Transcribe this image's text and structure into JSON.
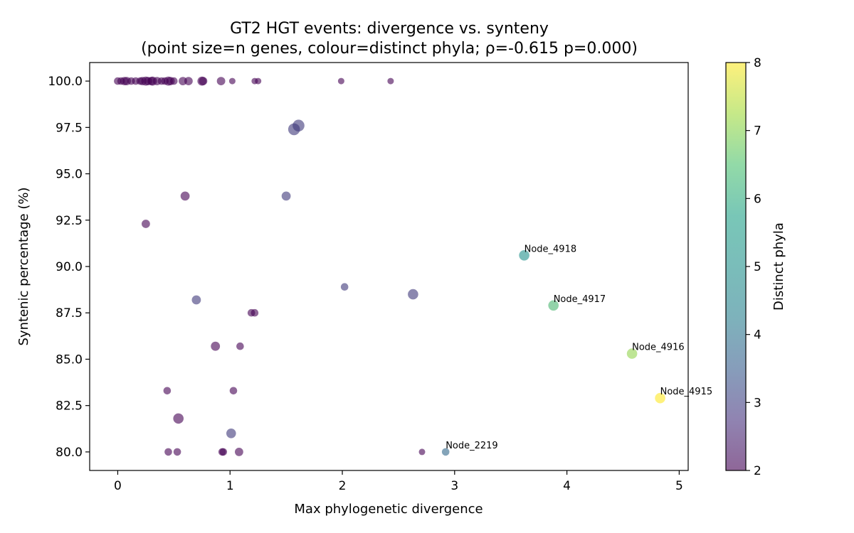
{
  "chart_data": {
    "type": "scatter",
    "title_line1": "GT2 HGT events: divergence vs. synteny",
    "title_line2": "(point size=n genes, colour=distinct phyla; ρ=-0.615 p=0.000)",
    "xlabel": "Max phylogenetic divergence",
    "ylabel": "Syntenic percentage (%)",
    "colorbar_label": "Distinct phyla",
    "xlim": [
      -0.25,
      5.08
    ],
    "ylim": [
      79.0,
      101.0
    ],
    "x_ticks": [
      0,
      1,
      2,
      3,
      4,
      5
    ],
    "x_tick_labels": [
      "0",
      "1",
      "2",
      "3",
      "4",
      "5"
    ],
    "y_ticks": [
      80.0,
      82.5,
      85.0,
      87.5,
      90.0,
      92.5,
      95.0,
      97.5,
      100.0
    ],
    "y_tick_labels": [
      "80.0",
      "82.5",
      "85.0",
      "87.5",
      "90.0",
      "92.5",
      "95.0",
      "97.5",
      "100.0"
    ],
    "color_range": [
      2,
      8
    ],
    "colorbar_ticks": [
      2,
      3,
      4,
      5,
      6,
      7,
      8
    ],
    "colorbar_tick_labels": [
      "2",
      "3",
      "4",
      "5",
      "6",
      "7",
      "8"
    ],
    "colormap": "viridis",
    "point_alpha": 0.6,
    "points": [
      {
        "x": 0.0,
        "y": 100.0,
        "phyla": 2,
        "size": 2
      },
      {
        "x": 0.03,
        "y": 100.0,
        "phyla": 2,
        "size": 2
      },
      {
        "x": 0.06,
        "y": 100.0,
        "phyla": 2,
        "size": 3
      },
      {
        "x": 0.08,
        "y": 100.0,
        "phyla": 2,
        "size": 3
      },
      {
        "x": 0.12,
        "y": 100.0,
        "phyla": 2,
        "size": 2
      },
      {
        "x": 0.16,
        "y": 100.0,
        "phyla": 2,
        "size": 2
      },
      {
        "x": 0.2,
        "y": 100.0,
        "phyla": 2,
        "size": 2
      },
      {
        "x": 0.22,
        "y": 100.0,
        "phyla": 2,
        "size": 3
      },
      {
        "x": 0.25,
        "y": 100.0,
        "phyla": 2,
        "size": 4
      },
      {
        "x": 0.27,
        "y": 100.0,
        "phyla": 2,
        "size": 3
      },
      {
        "x": 0.3,
        "y": 100.0,
        "phyla": 2,
        "size": 3
      },
      {
        "x": 0.31,
        "y": 100.0,
        "phyla": 2,
        "size": 4
      },
      {
        "x": 0.35,
        "y": 100.0,
        "phyla": 2,
        "size": 3
      },
      {
        "x": 0.39,
        "y": 100.0,
        "phyla": 2,
        "size": 2
      },
      {
        "x": 0.42,
        "y": 100.0,
        "phyla": 2,
        "size": 2
      },
      {
        "x": 0.45,
        "y": 100.0,
        "phyla": 2,
        "size": 4
      },
      {
        "x": 0.47,
        "y": 100.0,
        "phyla": 2,
        "size": 3
      },
      {
        "x": 0.5,
        "y": 100.0,
        "phyla": 2,
        "size": 2
      },
      {
        "x": 0.58,
        "y": 100.0,
        "phyla": 2,
        "size": 3
      },
      {
        "x": 0.63,
        "y": 100.0,
        "phyla": 2,
        "size": 3
      },
      {
        "x": 0.75,
        "y": 100.0,
        "phyla": 2,
        "size": 4
      },
      {
        "x": 0.76,
        "y": 100.0,
        "phyla": 2,
        "size": 3
      },
      {
        "x": 0.92,
        "y": 100.0,
        "phyla": 2,
        "size": 3
      },
      {
        "x": 1.02,
        "y": 100.0,
        "phyla": 2,
        "size": 1
      },
      {
        "x": 1.22,
        "y": 100.0,
        "phyla": 2,
        "size": 1
      },
      {
        "x": 1.25,
        "y": 100.0,
        "phyla": 2,
        "size": 1
      },
      {
        "x": 1.99,
        "y": 100.0,
        "phyla": 2,
        "size": 1
      },
      {
        "x": 2.43,
        "y": 100.0,
        "phyla": 2,
        "size": 1
      },
      {
        "x": 1.57,
        "y": 97.4,
        "phyla": 3,
        "size": 9
      },
      {
        "x": 1.61,
        "y": 97.6,
        "phyla": 3,
        "size": 9
      },
      {
        "x": 0.6,
        "y": 93.8,
        "phyla": 2,
        "size": 4
      },
      {
        "x": 1.5,
        "y": 93.8,
        "phyla": 3,
        "size": 4
      },
      {
        "x": 0.25,
        "y": 92.3,
        "phyla": 2,
        "size": 3
      },
      {
        "x": 3.62,
        "y": 90.6,
        "phyla": 5,
        "size": 6,
        "label": "Node_4918"
      },
      {
        "x": 2.02,
        "y": 88.9,
        "phyla": 3,
        "size": 2
      },
      {
        "x": 2.63,
        "y": 88.5,
        "phyla": 3,
        "size": 6
      },
      {
        "x": 0.7,
        "y": 88.2,
        "phyla": 3,
        "size": 4
      },
      {
        "x": 1.19,
        "y": 87.5,
        "phyla": 2,
        "size": 2
      },
      {
        "x": 1.22,
        "y": 87.5,
        "phyla": 2,
        "size": 2
      },
      {
        "x": 3.88,
        "y": 87.9,
        "phyla": 6,
        "size": 6,
        "label": "Node_4917"
      },
      {
        "x": 0.87,
        "y": 85.7,
        "phyla": 2,
        "size": 4
      },
      {
        "x": 1.09,
        "y": 85.7,
        "phyla": 2,
        "size": 2
      },
      {
        "x": 4.58,
        "y": 85.3,
        "phyla": 7,
        "size": 6,
        "label": "Node_4916"
      },
      {
        "x": 0.44,
        "y": 83.3,
        "phyla": 2,
        "size": 2
      },
      {
        "x": 1.03,
        "y": 83.3,
        "phyla": 2,
        "size": 2
      },
      {
        "x": 4.83,
        "y": 82.9,
        "phyla": 8,
        "size": 6,
        "label": "Node_4915"
      },
      {
        "x": 0.54,
        "y": 81.8,
        "phyla": 2,
        "size": 6
      },
      {
        "x": 1.01,
        "y": 81.0,
        "phyla": 3,
        "size": 5
      },
      {
        "x": 0.45,
        "y": 80.0,
        "phyla": 2,
        "size": 2
      },
      {
        "x": 0.53,
        "y": 80.0,
        "phyla": 2,
        "size": 2
      },
      {
        "x": 0.93,
        "y": 80.0,
        "phyla": 2,
        "size": 2
      },
      {
        "x": 0.94,
        "y": 80.0,
        "phyla": 2,
        "size": 2
      },
      {
        "x": 1.08,
        "y": 80.0,
        "phyla": 2,
        "size": 3
      },
      {
        "x": 2.71,
        "y": 80.0,
        "phyla": 2,
        "size": 1
      },
      {
        "x": 2.92,
        "y": 80.0,
        "phyla": 4,
        "size": 2,
        "label": "Node_2219"
      }
    ]
  }
}
